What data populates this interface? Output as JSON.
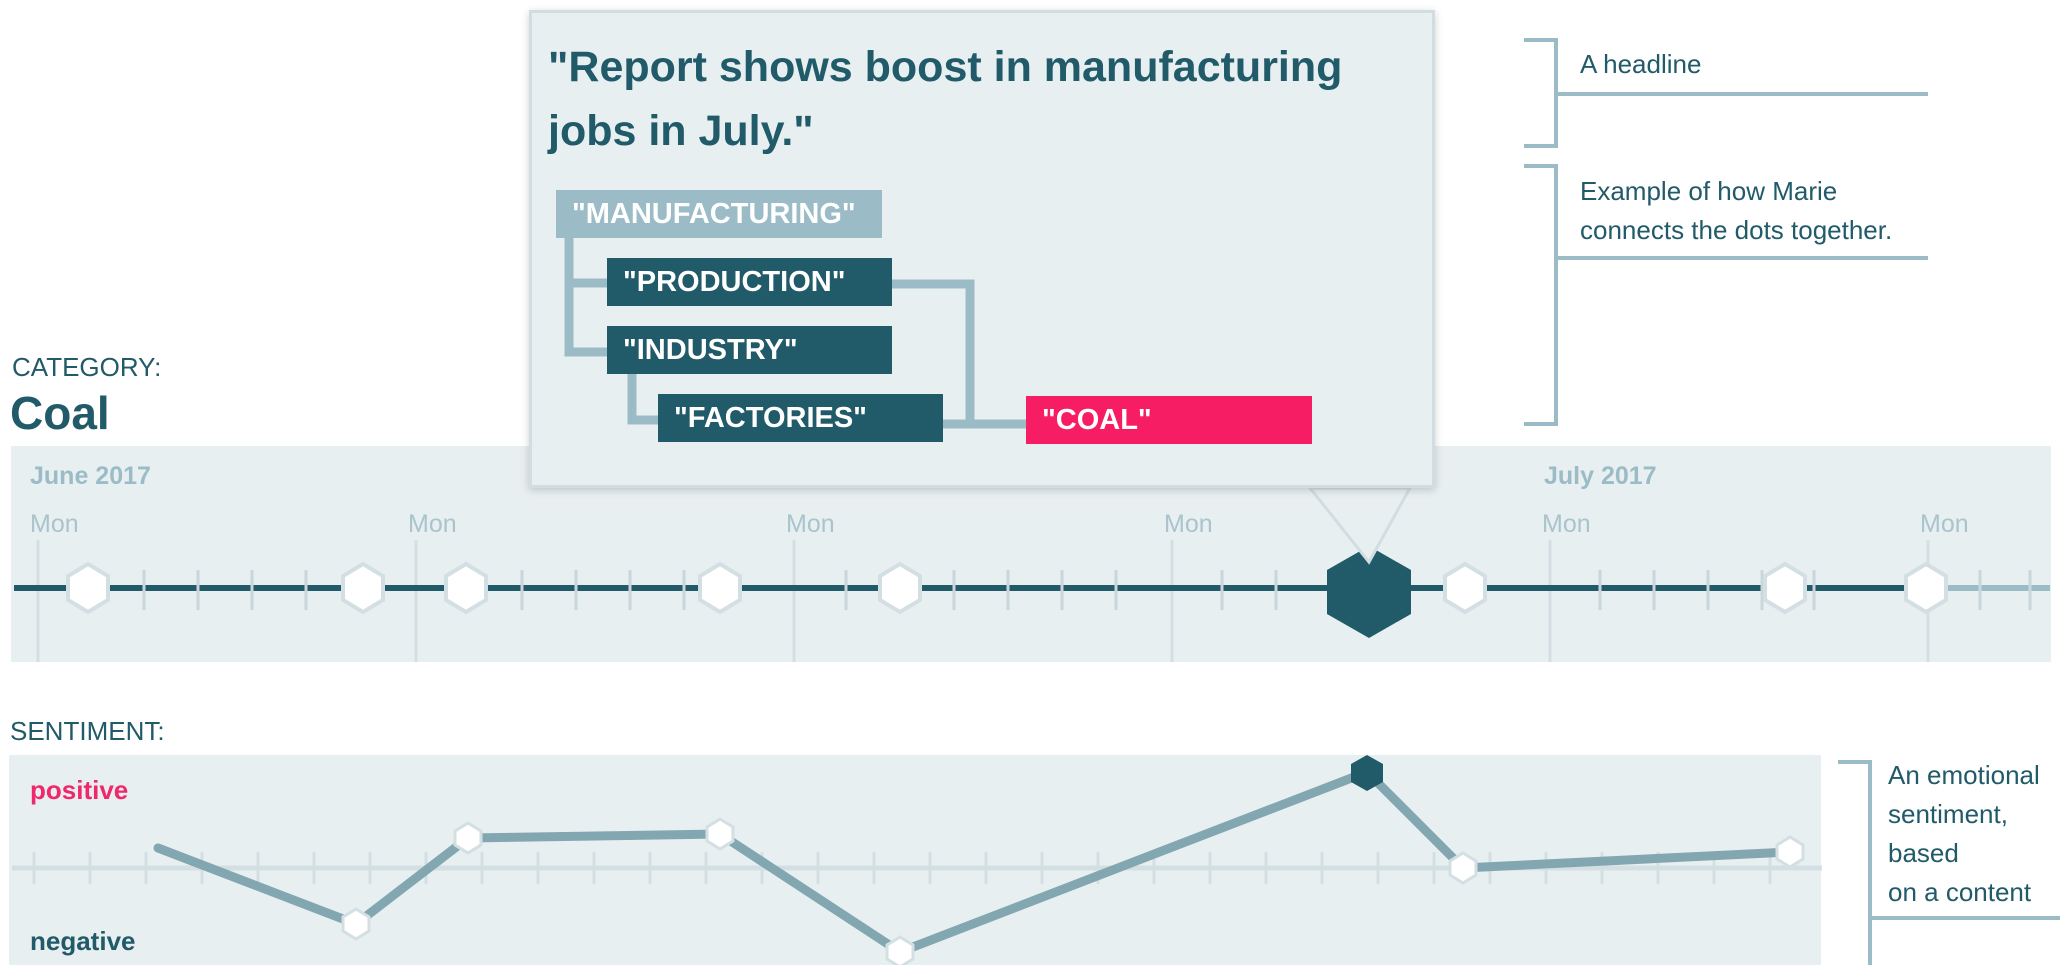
{
  "category": {
    "label": "CATEGORY:",
    "value": "Coal"
  },
  "timeline": {
    "months": [
      "June 2017",
      "July 2017"
    ],
    "day_labels": [
      "Mon",
      "Mon",
      "Mon",
      "Mon",
      "Mon",
      "Mon"
    ]
  },
  "popup": {
    "headline": "\"Report shows boost in manufacturing jobs in July.\"",
    "keywords": {
      "manufacturing": "\"MANUFACTURING\"",
      "production": "\"PRODUCTION\"",
      "industry": "\"INDUSTRY\"",
      "factories": "\"FACTORIES\"",
      "coal": "\"COAL\""
    }
  },
  "annotations": {
    "headline_note": "A headline",
    "dots_note_line1": "Example of how Marie",
    "dots_note_line2": "connects the dots together.",
    "sentiment_note_line1": "An emotional",
    "sentiment_note_line2": "sentiment,",
    "sentiment_note_line3": "based",
    "sentiment_note_line4": "on a content"
  },
  "sentiment": {
    "label": "SENTIMENT:",
    "positive": "positive",
    "negative": "negative"
  },
  "colors": {
    "dark_teal": "#215a69",
    "light_teal": "#9bbcc6",
    "pink": "#f71d65",
    "band_bg": "#e8eff1"
  }
}
